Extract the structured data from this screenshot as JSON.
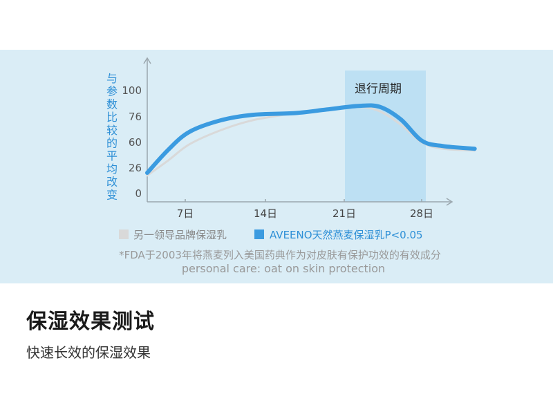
{
  "chart_data": {
    "type": "line",
    "ylabel": "与参数比较的平均改变",
    "y_ticks": [
      "100",
      "76",
      "60",
      "26",
      "0"
    ],
    "x_ticks": [
      "7日",
      "14日",
      "21日",
      "28日"
    ],
    "shaded_region": {
      "label": "退行周期",
      "x_range": [
        21,
        29
      ]
    },
    "series": [
      {
        "name": "另一领导品牌保湿乳",
        "color": "#d9d9d9",
        "points": [
          [
            0,
            23
          ],
          [
            2,
            40
          ],
          [
            4,
            58
          ],
          [
            7,
            74
          ],
          [
            10,
            85
          ],
          [
            14,
            93
          ],
          [
            17,
            98
          ],
          [
            20,
            100
          ],
          [
            22,
            95
          ],
          [
            24,
            80
          ],
          [
            26,
            60
          ],
          [
            28,
            53
          ],
          [
            31,
            51
          ]
        ]
      },
      {
        "name": "AVEENO天然燕麦保湿乳P<0.05",
        "color": "#3b9be0",
        "points": [
          [
            0,
            26
          ],
          [
            2,
            52
          ],
          [
            4,
            72
          ],
          [
            7,
            85
          ],
          [
            10,
            91
          ],
          [
            14,
            93
          ],
          [
            17,
            97
          ],
          [
            20,
            101
          ],
          [
            22,
            100
          ],
          [
            24,
            86
          ],
          [
            26,
            62
          ],
          [
            28,
            56
          ],
          [
            31,
            53
          ]
        ]
      }
    ],
    "footnote": "*FDA于2003年将燕麦列入美国药典作为对皮肤有保护功效的有效成分",
    "footnote_en": "personal care: oat on skin protection"
  },
  "texts": {
    "title": "保湿效果测试",
    "subtitle": "快速长效的保湿效果"
  }
}
